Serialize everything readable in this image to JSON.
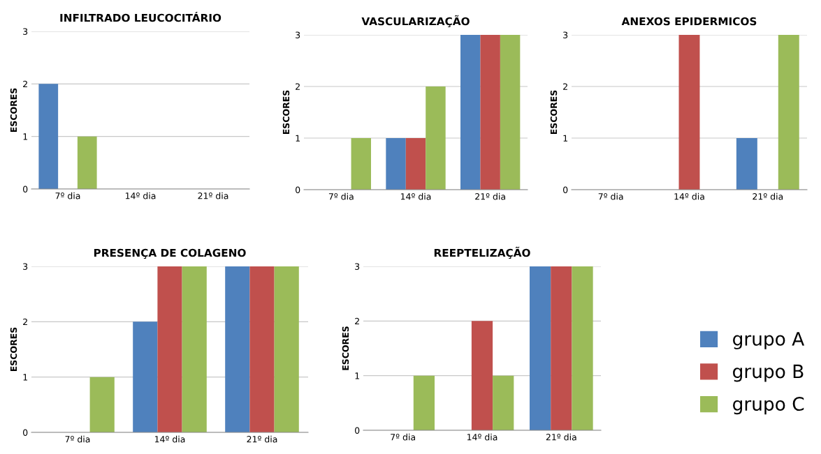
{
  "chart_data": [
    {
      "type": "bar",
      "title": "INFILTRADO LEUCOCITÁRIO",
      "ylabel": "ESCORES",
      "categories": [
        "7º dia",
        "14º dia",
        "21º dia"
      ],
      "ylim": [
        0,
        3
      ],
      "yticks": [
        0,
        1,
        2,
        3
      ],
      "grid": "y",
      "series": [
        {
          "color": "#4f81bd",
          "values": [
            2,
            0,
            0
          ]
        },
        {
          "color": "#c0504d",
          "values": [
            0,
            0,
            0
          ]
        },
        {
          "color": "#9bbb59",
          "values": [
            1,
            0,
            0
          ]
        }
      ]
    },
    {
      "type": "bar",
      "title": "VASCULARIZAÇÃO",
      "ylabel": "ESCORES",
      "categories": [
        "7º dia",
        "14º dia",
        "21º dia"
      ],
      "ylim": [
        0,
        3
      ],
      "yticks": [
        0,
        1,
        2,
        3
      ],
      "grid": "y",
      "series": [
        {
          "color": "#4f81bd",
          "values": [
            0,
            1,
            3
          ]
        },
        {
          "color": "#c0504d",
          "values": [
            0,
            1,
            3
          ]
        },
        {
          "color": "#9bbb59",
          "values": [
            1,
            2,
            3
          ]
        }
      ]
    },
    {
      "type": "bar",
      "title": "ANEXOS EPIDERMICOS",
      "ylabel": "ESCORES",
      "categories": [
        "7º dia",
        "14º dia",
        "21º dia"
      ],
      "ylim": [
        0,
        3
      ],
      "yticks": [
        0,
        1,
        2,
        3
      ],
      "grid": "y",
      "series": [
        {
          "color": "#4f81bd",
          "values": [
            0,
            0,
            1
          ]
        },
        {
          "color": "#c0504d",
          "values": [
            0,
            3,
            0
          ]
        },
        {
          "color": "#9bbb59",
          "values": [
            0,
            0,
            3
          ]
        }
      ]
    },
    {
      "type": "bar",
      "title": "PRESENÇA DE COLAGENO",
      "ylabel": "ESCORES",
      "categories": [
        "7º dia",
        "14º dia",
        "21º dia"
      ],
      "ylim": [
        0,
        3
      ],
      "yticks": [
        0,
        1,
        2,
        3
      ],
      "grid": "y",
      "series": [
        {
          "color": "#4f81bd",
          "values": [
            0,
            2,
            3
          ]
        },
        {
          "color": "#c0504d",
          "values": [
            0,
            3,
            3
          ]
        },
        {
          "color": "#9bbb59",
          "values": [
            1,
            3,
            3
          ]
        }
      ]
    },
    {
      "type": "bar",
      "title": "REEPTELIZAÇÃO",
      "ylabel": "ESCORES",
      "categories": [
        "7º dia",
        "14º dia",
        "21º dia"
      ],
      "ylim": [
        0,
        3
      ],
      "yticks": [
        0,
        1,
        2,
        3
      ],
      "grid": "y",
      "legend": "right",
      "series": [
        {
          "name": "grupo A",
          "color": "#4f81bd",
          "values": [
            0,
            0,
            3
          ]
        },
        {
          "name": "grupo B",
          "color": "#c0504d",
          "values": [
            0,
            2,
            3
          ]
        },
        {
          "name": "grupo C",
          "color": "#9bbb59",
          "values": [
            1,
            1,
            3
          ]
        }
      ]
    }
  ]
}
